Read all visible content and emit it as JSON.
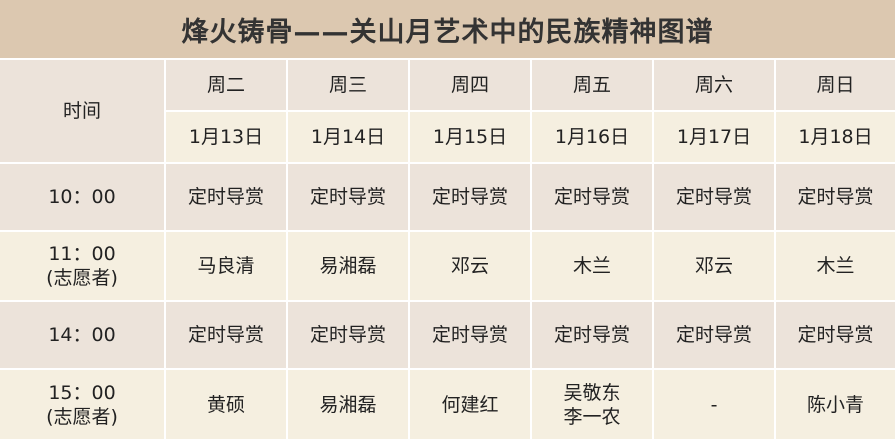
{
  "title": "烽火铸骨——关山月艺术中的民族精神图谱",
  "colors": {
    "title_bg": "#dcc8b0",
    "row_dark": "#ece3da",
    "row_light": "#f5efe0"
  },
  "header": {
    "time_label": "时间",
    "days": [
      "周二",
      "周三",
      "周四",
      "周五",
      "周六",
      "周日"
    ],
    "dates": [
      "1月13日",
      "1月14日",
      "1月15日",
      "1月16日",
      "1月17日",
      "1月18日"
    ]
  },
  "rows": [
    {
      "time": "10：00",
      "time_note": "",
      "cells": [
        "定时导赏",
        "定时导赏",
        "定时导赏",
        "定时导赏",
        "定时导赏",
        "定时导赏"
      ]
    },
    {
      "time": "11：00",
      "time_note": "(志愿者)",
      "cells": [
        "马良清",
        "易湘磊",
        "邓云",
        "木兰",
        "邓云",
        "木兰"
      ]
    },
    {
      "time": "14：00",
      "time_note": "",
      "cells": [
        "定时导赏",
        "定时导赏",
        "定时导赏",
        "定时导赏",
        "定时导赏",
        "定时导赏"
      ]
    },
    {
      "time": "15：00",
      "time_note": "(志愿者)",
      "cells": [
        "黄硕",
        "易湘磊",
        "何建红",
        "吴敬东\n李一农",
        "-",
        "陈小青"
      ]
    }
  ]
}
